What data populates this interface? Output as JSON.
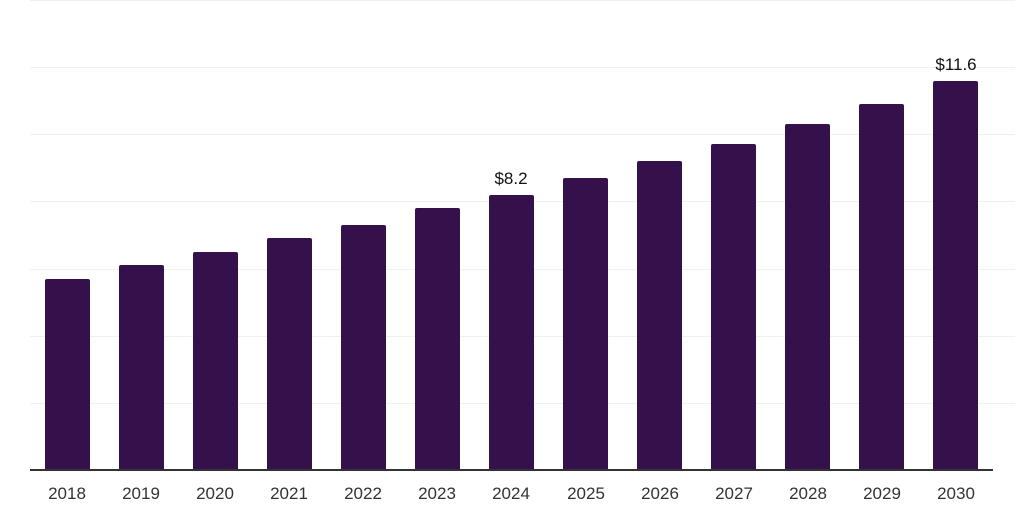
{
  "chart_data": {
    "type": "bar",
    "title": "",
    "xlabel": "",
    "ylabel": "",
    "categories": [
      "2018",
      "2019",
      "2020",
      "2021",
      "2022",
      "2023",
      "2024",
      "2025",
      "2026",
      "2027",
      "2028",
      "2029",
      "2030"
    ],
    "values": [
      5.7,
      6.1,
      6.5,
      6.9,
      7.3,
      7.8,
      8.2,
      8.7,
      9.2,
      9.7,
      10.3,
      10.9,
      11.6
    ],
    "annotations": [
      {
        "category": "2024",
        "text": "$8.2"
      },
      {
        "category": "2030",
        "text": "$11.6"
      }
    ],
    "ylim": [
      0,
      14
    ],
    "gridline_values": [
      2,
      4,
      6,
      8,
      10,
      12,
      14
    ],
    "grid": true,
    "legend": "none",
    "y_axis_ticks_visible": false,
    "colors": {
      "bar": "#35114b",
      "axis_line": "#333333",
      "gridline": "#f0f0f0",
      "tick_label": "#333333",
      "annotation": "#111111",
      "background": "#ffffff"
    }
  }
}
